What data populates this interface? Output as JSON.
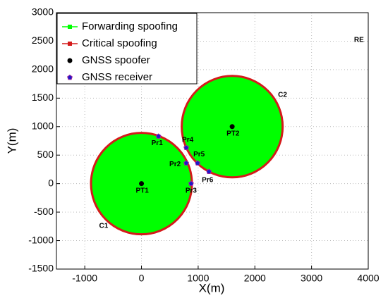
{
  "chart_data": {
    "type": "scatter",
    "xlabel": "X(m)",
    "ylabel": "Y(m)",
    "xlim": [
      -1500,
      4000
    ],
    "xticks": [
      -1000,
      0,
      1000,
      2000,
      3000,
      4000
    ],
    "ylim": [
      -1500,
      3000
    ],
    "yticks": [
      -1500,
      -1000,
      -500,
      0,
      500,
      1000,
      1500,
      2000,
      2500,
      3000
    ],
    "grid": true,
    "legend": "upper left",
    "series": [
      {
        "name": "Forwarding spoofing",
        "color": "#00ff00",
        "marker": "square"
      },
      {
        "name": "Critical spoofing",
        "color": "#d41a1a",
        "marker": "square"
      },
      {
        "name": "GNSS spoofer",
        "color": "#000000",
        "marker": "circle",
        "x": [
          0,
          1600
        ],
        "y": [
          0,
          1000
        ],
        "labels": [
          "PT1",
          "PT2"
        ]
      },
      {
        "name": "GNSS receiver",
        "color": "#1a1ac8",
        "marker": "pentagon",
        "x": [
          300,
          790,
          875,
          790,
          990,
          1190
        ],
        "y": [
          830,
          360,
          0,
          630,
          360,
          210
        ],
        "labels": [
          "Pr1",
          "Pr2",
          "Pr3",
          "Pr4",
          "Pr5",
          "Pr6"
        ]
      }
    ],
    "regions": [
      {
        "label": "C1",
        "cx": 0,
        "cy": 0,
        "r": 890
      },
      {
        "label": "C2",
        "cx": 1600,
        "cy": 1000,
        "r": 890
      }
    ],
    "annotations": [
      {
        "text": "RE",
        "x": 3750,
        "y": 2520
      }
    ]
  }
}
